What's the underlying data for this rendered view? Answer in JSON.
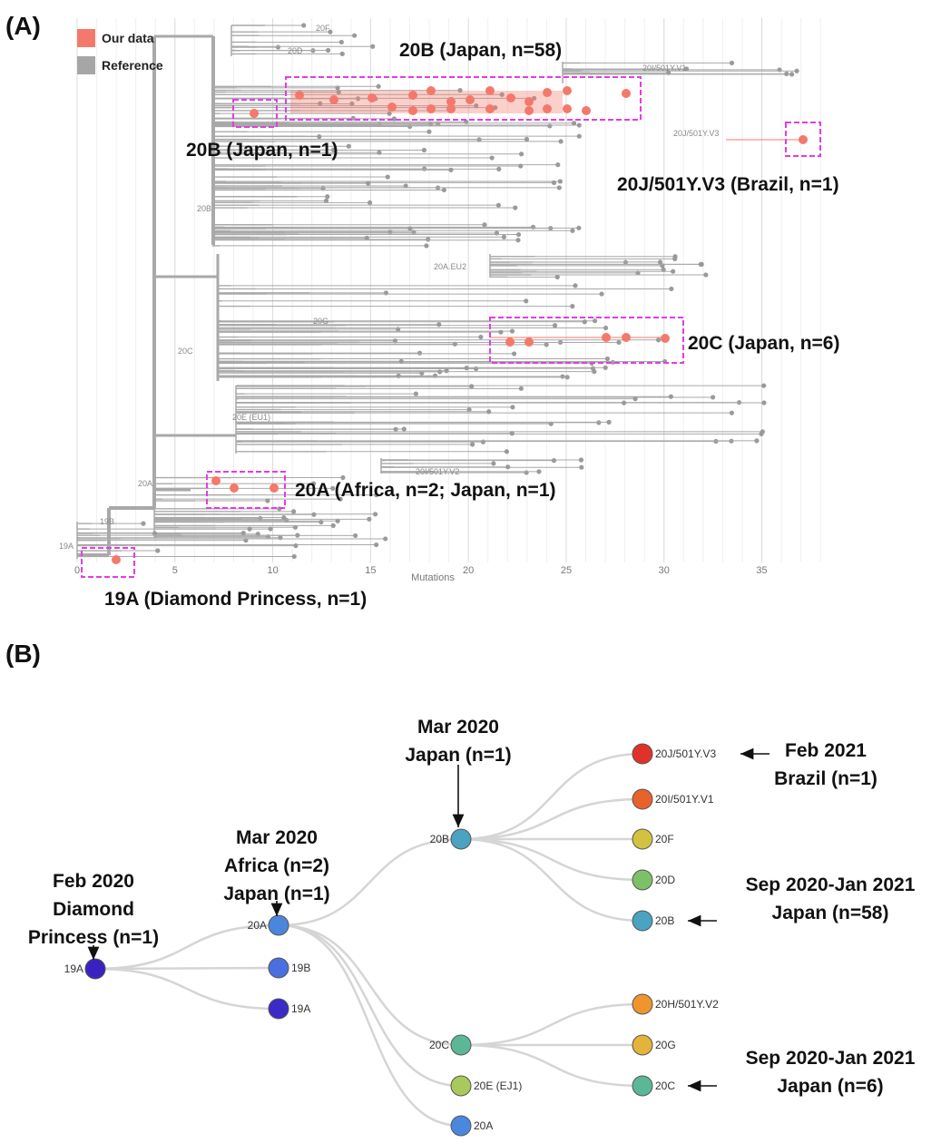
{
  "panel_a": {
    "label": "(A)",
    "legend": [
      {
        "name": "Our data",
        "color": "#f4796b"
      },
      {
        "name": "Reference",
        "color": "#a6a6a6"
      }
    ],
    "clade_labels": [
      "20F",
      "20D",
      "20I/501Y.V1",
      "20J/501Y.V3",
      "20B",
      "20A.EU2",
      "20G",
      "20C",
      "20E (EU1)",
      "20I/501Y.V2",
      "20A",
      "19B",
      "19A"
    ],
    "annotations": [
      "20B (Japan, n=58)",
      "20B (Japan, n=1)",
      "20J/501Y.V3 (Brazil, n=1)",
      "20C (Japan, n=6)",
      "20A (Africa, n=2; Japan, n=1)",
      "19A (Diamond Princess, n=1)"
    ],
    "axis": {
      "label": "Mutations",
      "xlim": [
        0,
        38.5
      ],
      "xticks": [
        0,
        5,
        10,
        15,
        20,
        25,
        30,
        35
      ]
    }
  },
  "panel_b": {
    "label": "(B)",
    "nodes": [
      {
        "label": "19A",
        "color": "#3a22c2"
      },
      {
        "label": "20A",
        "color": "#4a86dc"
      },
      {
        "label": "19B",
        "color": "#4a6fe0"
      },
      {
        "label": "19A",
        "color": "#3a2ac6"
      },
      {
        "label": "20B",
        "color": "#4aa3c0"
      },
      {
        "label": "20C",
        "color": "#5bb896"
      },
      {
        "label": "20E (EJ1)",
        "color": "#a9c95a"
      },
      {
        "label": "20A",
        "color": "#4a88e0"
      },
      {
        "label": "20J/501Y.V3",
        "color": "#e0322a"
      },
      {
        "label": "20I/501Y.V1",
        "color": "#e8622c"
      },
      {
        "label": "20F",
        "color": "#d3c23f"
      },
      {
        "label": "20D",
        "color": "#7cc168"
      },
      {
        "label": "20B",
        "color": "#4aa3c0"
      },
      {
        "label": "20H/501Y.V2",
        "color": "#f0952e"
      },
      {
        "label": "20G",
        "color": "#e3b33c"
      },
      {
        "label": "20C",
        "color": "#5bb896"
      }
    ],
    "annotations": [
      {
        "lines": [
          "Feb 2020",
          "Diamond",
          "Princess (n=1)"
        ]
      },
      {
        "lines": [
          "Mar 2020",
          "Africa (n=2)",
          "Japan (n=1)"
        ]
      },
      {
        "lines": [
          "Mar 2020",
          "Japan (n=1)"
        ]
      },
      {
        "lines": [
          "Feb 2021",
          "Brazil (n=1)"
        ]
      },
      {
        "lines": [
          "Sep 2020-Jan 2021",
          "Japan (n=58)"
        ]
      },
      {
        "lines": [
          "Sep 2020-Jan 2021",
          "Japan (n=6)"
        ]
      }
    ]
  }
}
